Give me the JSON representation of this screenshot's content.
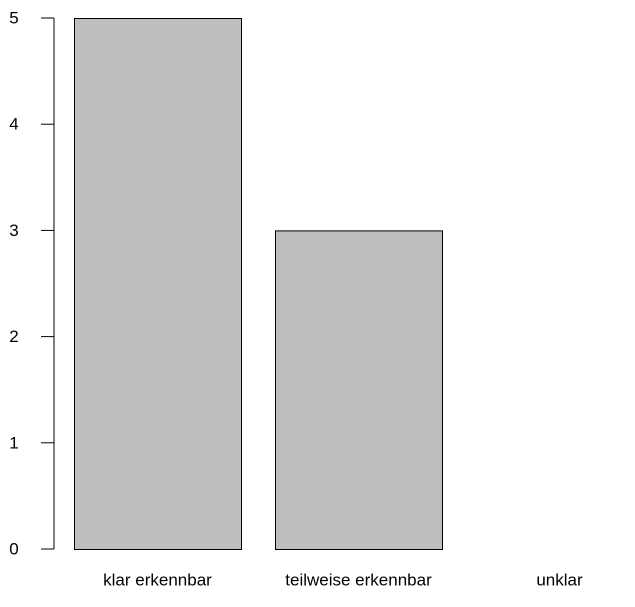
{
  "chart_data": {
    "type": "bar",
    "categories": [
      "klar erkennbar",
      "teilweise erkennbar",
      "unklar"
    ],
    "values": [
      5,
      3,
      0
    ],
    "ylim": [
      0,
      5
    ],
    "yticks": [
      0,
      1,
      2,
      3,
      4,
      5
    ],
    "grid": false,
    "bar_color": "#bebebe",
    "bar_edge_color": "#000000"
  }
}
